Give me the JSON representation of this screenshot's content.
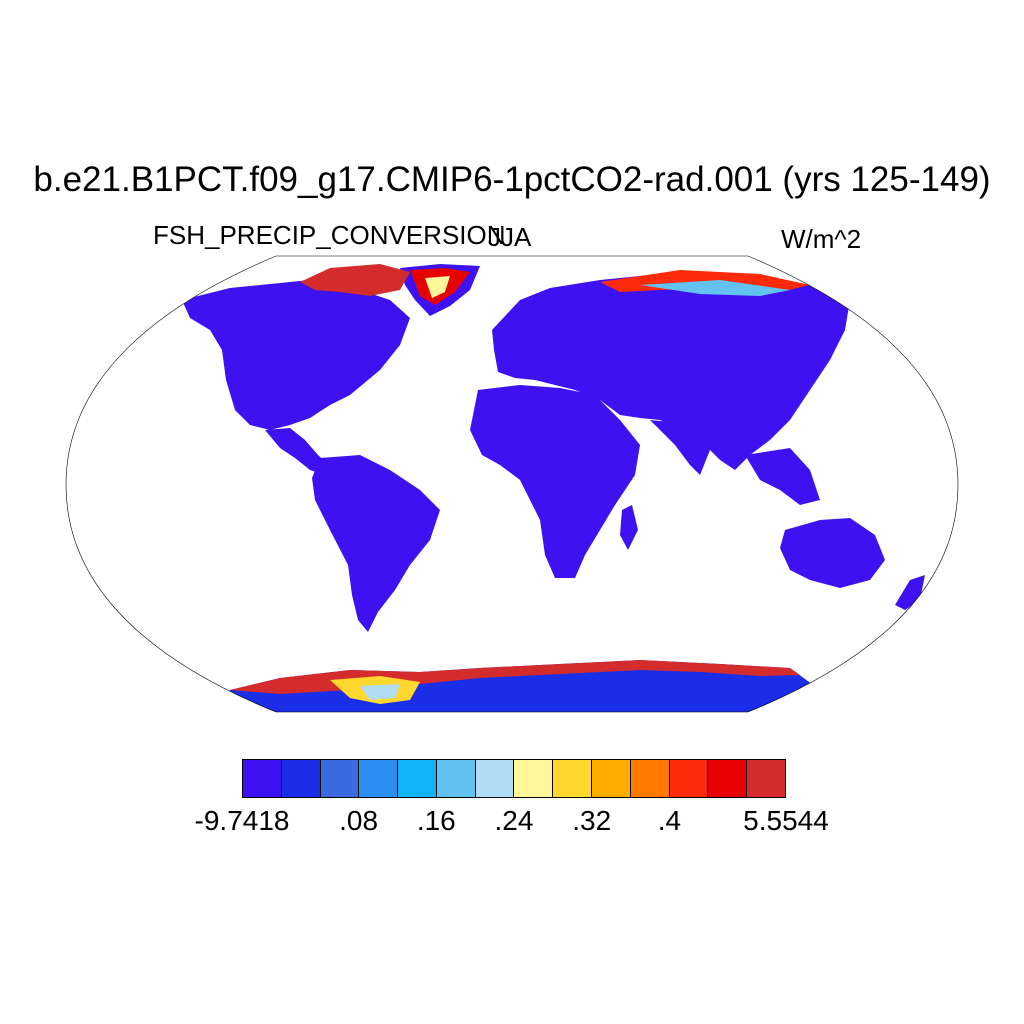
{
  "title": "b.e21.B1PCT.f09_g17.CMIP6-1pctCO2-rad.001 (yrs 125-149)",
  "left_label": "FSH_PRECIP_CONVERSION",
  "center_label": "JJA",
  "right_label": "W/m^2",
  "colorbar": {
    "colors": [
      "#3e12f0",
      "#1a2ee8",
      "#3c6be0",
      "#2a8ff0",
      "#10b4f8",
      "#62c3f3",
      "#b0dcf4",
      "#fff79a",
      "#ffd72e",
      "#ffab00",
      "#ff7800",
      "#ff2a0a",
      "#e60000",
      "#d42c2c"
    ],
    "labels": [
      "-9.7418",
      ".08",
      ".16",
      ".24",
      ".32",
      ".4",
      "5.5544"
    ]
  },
  "map": {
    "projection": "Robinson",
    "land_color": "#3e12f0",
    "antarctica_color": "#1a2ee8",
    "ocean_color": "#ffffff"
  }
}
